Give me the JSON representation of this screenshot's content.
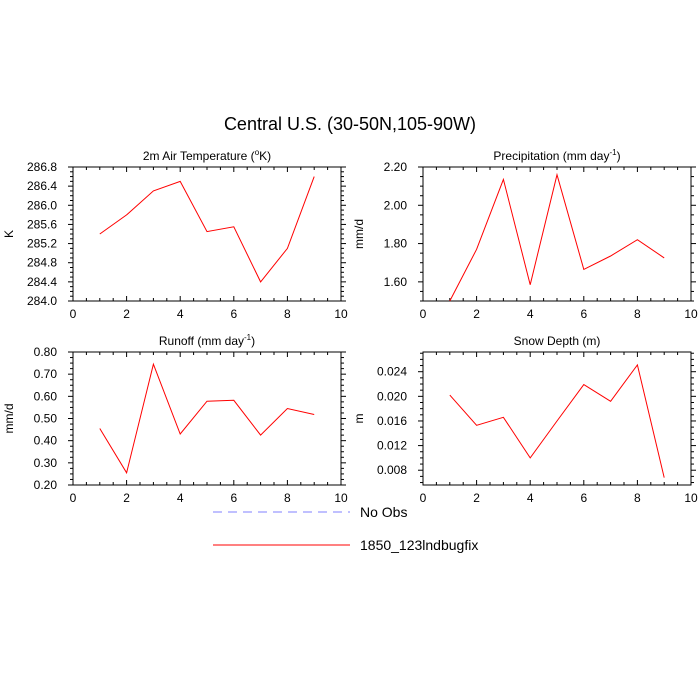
{
  "figure": {
    "title": "Central U.S. (30-50N,105-90W)"
  },
  "legend": {
    "entries": [
      {
        "label": "No Obs",
        "color": "#8080ff",
        "dashed": true
      },
      {
        "label": "1850_123lndbugfix",
        "color": "#ff0000",
        "dashed": false
      }
    ]
  },
  "chart_data": [
    {
      "type": "line",
      "title": "2m Air Temperature (°K)",
      "title_parts": [
        "2m Air Temperature (",
        "o",
        "K)"
      ],
      "ylabel": "K",
      "xlim": [
        0,
        10
      ],
      "ylim": [
        284.0,
        286.8
      ],
      "xticks": [
        0,
        2,
        4,
        6,
        8,
        10
      ],
      "yticks": [
        "284.0",
        "284.4",
        "284.8",
        "285.2",
        "285.6",
        "286.0",
        "286.4",
        "286.8"
      ],
      "ytick_step": 0.4,
      "series": [
        {
          "name": "1850_123lndbugfix",
          "color": "#ff0000",
          "x": [
            1,
            2,
            3,
            4,
            5,
            6,
            7,
            8,
            9
          ],
          "y": [
            285.4,
            285.8,
            286.3,
            286.5,
            285.45,
            285.55,
            284.4,
            285.1,
            286.6
          ]
        }
      ]
    },
    {
      "type": "line",
      "title": "Precipitation (mm day-1)",
      "title_parts": [
        "Precipitation (mm day",
        "-1",
        ")"
      ],
      "ylabel": "mm/d",
      "xlim": [
        0,
        10
      ],
      "ylim": [
        1.5,
        2.2
      ],
      "xticks": [
        0,
        2,
        4,
        6,
        8,
        10
      ],
      "yticks": [
        "1.60",
        "1.80",
        "2.00",
        "2.20"
      ],
      "ytick_step": 0.2,
      "series": [
        {
          "name": "1850_123lndbugfix",
          "color": "#ff0000",
          "x": [
            1,
            2,
            3,
            4,
            5,
            6,
            7,
            8,
            9
          ],
          "y": [
            1.5,
            1.77,
            2.135,
            1.585,
            2.16,
            1.665,
            1.735,
            1.82,
            1.725
          ]
        }
      ]
    },
    {
      "type": "line",
      "title": "Runoff (mm day-1)",
      "title_parts": [
        "Runoff (mm day",
        "-1",
        ")"
      ],
      "ylabel": "mm/d",
      "xlim": [
        0,
        10
      ],
      "ylim": [
        0.2,
        0.8
      ],
      "xticks": [
        0,
        2,
        4,
        6,
        8,
        10
      ],
      "yticks": [
        "0.20",
        "0.30",
        "0.40",
        "0.50",
        "0.60",
        "0.70",
        "0.80"
      ],
      "ytick_step": 0.1,
      "series": [
        {
          "name": "1850_123lndbugfix",
          "color": "#ff0000",
          "x": [
            1,
            2,
            3,
            4,
            5,
            6,
            7,
            8,
            9
          ],
          "y": [
            0.455,
            0.255,
            0.745,
            0.43,
            0.578,
            0.582,
            0.425,
            0.545,
            0.518
          ]
        }
      ]
    },
    {
      "type": "line",
      "title": "Snow Depth (m)",
      "title_parts": [
        "Snow Depth (m)"
      ],
      "ylabel": "m",
      "xlim": [
        0,
        10
      ],
      "ylim": [
        0.0056,
        0.0272
      ],
      "xticks": [
        0,
        2,
        4,
        6,
        8,
        10
      ],
      "yticks": [
        "0.008",
        "0.012",
        "0.016",
        "0.020",
        "0.024"
      ],
      "ytick_step": 0.004,
      "series": [
        {
          "name": "1850_123lndbugfix",
          "color": "#ff0000",
          "x": [
            1,
            2,
            3,
            4,
            5,
            6,
            7,
            8,
            9
          ],
          "y": [
            0.0202,
            0.0153,
            0.0166,
            0.01,
            0.016,
            0.0219,
            0.0192,
            0.0251,
            0.0068
          ]
        }
      ]
    }
  ]
}
